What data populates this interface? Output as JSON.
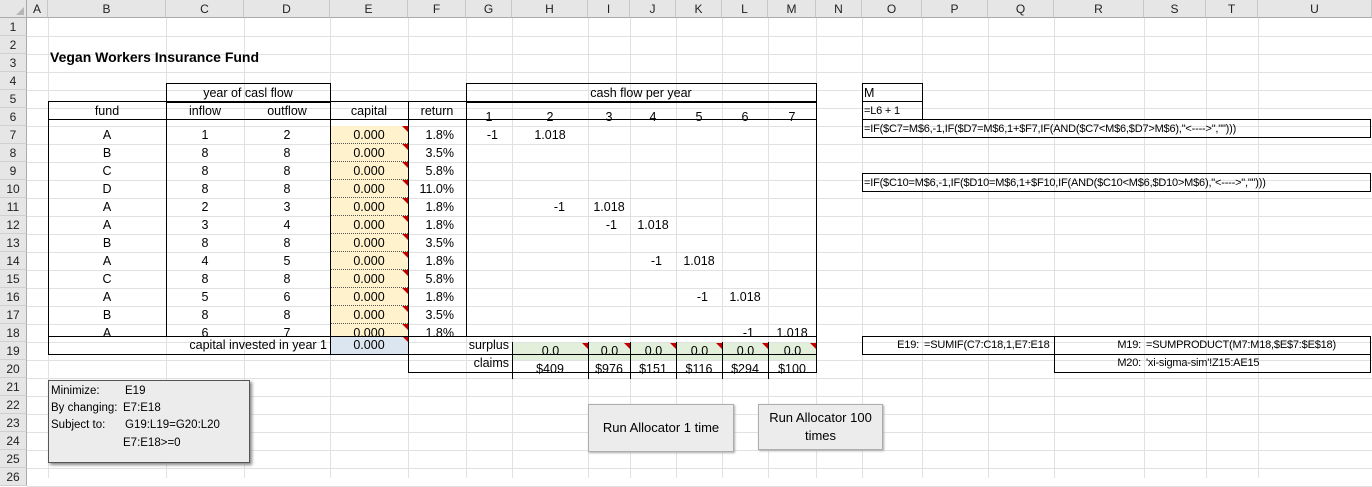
{
  "columns": [
    "A",
    "B",
    "C",
    "D",
    "E",
    "F",
    "G",
    "H",
    "I",
    "J",
    "K",
    "L",
    "M",
    "N",
    "O",
    "P",
    "Q",
    "R",
    "S",
    "T",
    "U"
  ],
  "rows": [
    "1",
    "2",
    "3",
    "4",
    "5",
    "6",
    "7",
    "8",
    "9",
    "10",
    "11",
    "12",
    "13",
    "14",
    "15",
    "16",
    "17",
    "18",
    "19",
    "20",
    "21",
    "22",
    "23",
    "24",
    "25",
    "26"
  ],
  "title": "Vegan Workers Insurance Fund",
  "headers": {
    "year_of_cash_flow": "year of casl flow",
    "cash_flow_per_year": "cash flow per year",
    "fund": "fund",
    "inflow": "inflow",
    "outflow": "outflow",
    "capital": "capital",
    "return": "return",
    "years": [
      "1",
      "2",
      "3",
      "4",
      "5",
      "6",
      "7"
    ]
  },
  "table_rows": [
    {
      "fund": "A",
      "inflow": "1",
      "outflow": "2",
      "capital": "0.000",
      "return": "1.8%"
    },
    {
      "fund": "B",
      "inflow": "8",
      "outflow": "8",
      "capital": "0.000",
      "return": "3.5%"
    },
    {
      "fund": "C",
      "inflow": "8",
      "outflow": "8",
      "capital": "0.000",
      "return": "5.8%"
    },
    {
      "fund": "D",
      "inflow": "8",
      "outflow": "8",
      "capital": "0.000",
      "return": "11.0%"
    },
    {
      "fund": "A",
      "inflow": "2",
      "outflow": "3",
      "capital": "0.000",
      "return": "1.8%"
    },
    {
      "fund": "A",
      "inflow": "3",
      "outflow": "4",
      "capital": "0.000",
      "return": "1.8%"
    },
    {
      "fund": "B",
      "inflow": "8",
      "outflow": "8",
      "capital": "0.000",
      "return": "3.5%"
    },
    {
      "fund": "A",
      "inflow": "4",
      "outflow": "5",
      "capital": "0.000",
      "return": "1.8%"
    },
    {
      "fund": "C",
      "inflow": "8",
      "outflow": "8",
      "capital": "0.000",
      "return": "5.8%"
    },
    {
      "fund": "A",
      "inflow": "5",
      "outflow": "6",
      "capital": "0.000",
      "return": "1.8%"
    },
    {
      "fund": "B",
      "inflow": "8",
      "outflow": "8",
      "capital": "0.000",
      "return": "3.5%"
    },
    {
      "fund": "A",
      "inflow": "6",
      "outflow": "7",
      "capital": "0.000",
      "return": "1.8%"
    }
  ],
  "cash_flows": [
    {
      "row": 0,
      "col": 0,
      "value": "-1"
    },
    {
      "row": 0,
      "col": 1,
      "value": "1.018"
    },
    {
      "row": 4,
      "col": 1,
      "value": "-1"
    },
    {
      "row": 4,
      "col": 2,
      "value": "1.018"
    },
    {
      "row": 5,
      "col": 2,
      "value": "-1"
    },
    {
      "row": 5,
      "col": 3,
      "value": "1.018"
    },
    {
      "row": 7,
      "col": 3,
      "value": "-1"
    },
    {
      "row": 7,
      "col": 4,
      "value": "1.018"
    },
    {
      "row": 9,
      "col": 4,
      "value": "-1"
    },
    {
      "row": 9,
      "col": 5,
      "value": "1.018"
    },
    {
      "row": 11,
      "col": 5,
      "value": "-1"
    },
    {
      "row": 11,
      "col": 6,
      "value": "1.018"
    }
  ],
  "capital_invested_label": "capital invested in year 1",
  "capital_invested_value": "0.000",
  "surplus_label": "surplus",
  "surplus_values": [
    "0.0",
    "0.0",
    "0.0",
    "0.0",
    "0.0",
    "0.0"
  ],
  "claims_label": "claims",
  "claims_values": [
    "$409",
    "$976",
    "$151",
    "$116",
    "$294",
    "$100"
  ],
  "annotations": {
    "m_label": "M",
    "m_formula": "=L6 + 1",
    "formula_row7": "=IF($C7=M$6,-1,IF($D7=M$6,1+$F7,IF(AND($C7<M$6,$D7>M$6),\"<---->\",\"\")))",
    "formula_row10": "=IF($C10=M$6,-1,IF($D10=M$6,1+$F10,IF(AND($C10<M$6,$D10>M$6),\"<---->\",\"\")))",
    "e19_label": "E19:",
    "e19_formula": "=SUMIF(C7:C18,1,E7:E18",
    "m19_label": "M19:",
    "m19_formula": "=SUMPRODUCT(M7:M18,$E$7:$E$18)",
    "m20_label": "M20:",
    "m20_formula": "'xi-sigma-sim'!Z15:AE15"
  },
  "solver": {
    "minimize_label": "Minimize:",
    "minimize_value": "E19",
    "changing_label": "By changing:",
    "changing_value": "E7:E18",
    "subject_label": "Subject to:",
    "constraint1": "G19:L19=G20:L20",
    "constraint2": "E7:E18>=0"
  },
  "buttons": {
    "run_once": "Run Allocator 1 time",
    "run_100": "Run Allocator 100 times"
  }
}
